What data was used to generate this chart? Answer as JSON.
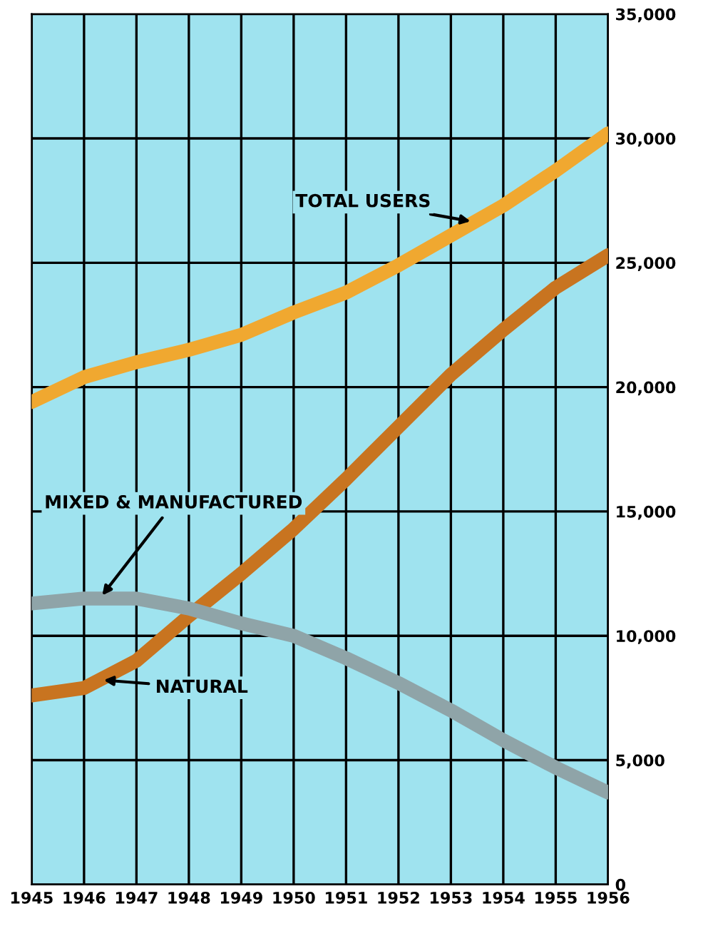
{
  "chart_data": {
    "type": "line",
    "x": [
      1945,
      1946,
      1947,
      1948,
      1949,
      1950,
      1951,
      1952,
      1953,
      1954,
      1955,
      1956
    ],
    "series": [
      {
        "name": "TOTAL USERS",
        "color": "#f0a830",
        "values": [
          19400,
          20400,
          21000,
          21500,
          22100,
          23000,
          23800,
          24900,
          26100,
          27300,
          28700,
          30200
        ]
      },
      {
        "name": "NATURAL",
        "color": "#c87420",
        "values": [
          7600,
          7900,
          9000,
          10800,
          12500,
          14300,
          16300,
          18400,
          20500,
          22300,
          24000,
          25300
        ]
      },
      {
        "name": "MIXED & MANUFACTURED",
        "color": "#8fa4a8",
        "values": [
          11300,
          11500,
          11500,
          11100,
          10500,
          10000,
          9100,
          8100,
          7000,
          5800,
          4700,
          3700
        ]
      }
    ],
    "xlim": [
      1945,
      1956
    ],
    "xticks": [
      1945,
      1946,
      1947,
      1948,
      1949,
      1950,
      1951,
      1952,
      1953,
      1954,
      1955,
      1956
    ],
    "ylim": [
      0,
      35000
    ],
    "yticks": [
      0,
      {
        "value": 5000,
        "label": "5,000"
      },
      {
        "value": 10000,
        "label": "10,000"
      },
      {
        "value": 15000,
        "label": "15,000"
      },
      {
        "value": 20000,
        "label": "20,000"
      },
      {
        "value": 25000,
        "label": "25,000"
      },
      {
        "value": 30000,
        "label": "30,000"
      },
      {
        "value": 35000,
        "label": "35,000"
      }
    ],
    "grid": true,
    "legend": false,
    "marker": "none",
    "line_style": "solid"
  }
}
